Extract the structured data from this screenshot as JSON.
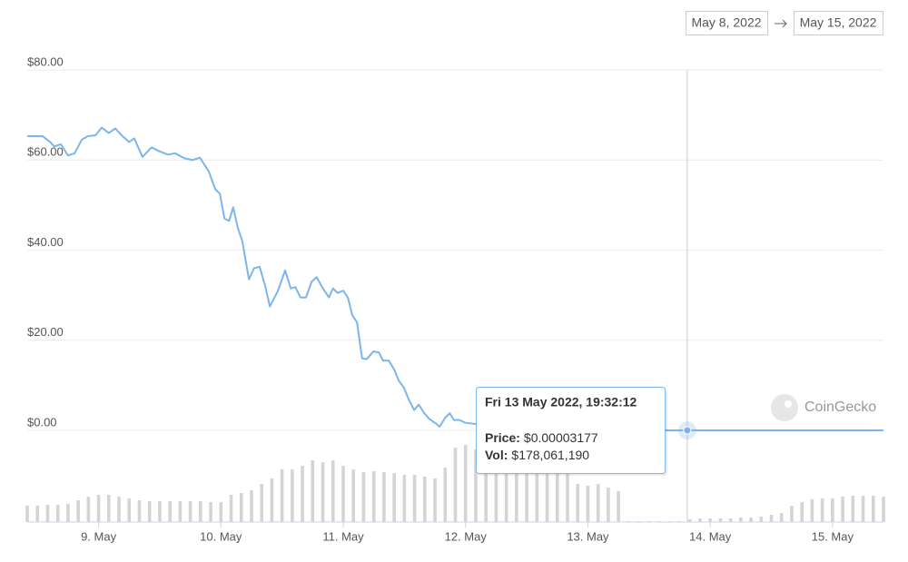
{
  "date_range": {
    "from": "May 8, 2022",
    "to": "May 15, 2022"
  },
  "chart_data": {
    "type": "line",
    "x": [
      10,
      13,
      14.5,
      15.3,
      16.6,
      18,
      19.3,
      20.7,
      21.9,
      23.4,
      24.6,
      26,
      27.3,
      28.5,
      30,
      31,
      32.6,
      34.4,
      35.8,
      37.6,
      39,
      40.8,
      42.4,
      43.9,
      45.6,
      46.9,
      47.8,
      48.7,
      49.6,
      50.4,
      51.3,
      52.2,
      53.5,
      54.5,
      55.6,
      56.7,
      57.6,
      59.2,
      60.6,
      61.7,
      62.6,
      63.6,
      64.7,
      65.8,
      66.8,
      67.9,
      69.2,
      70,
      70.9,
      72,
      72.9,
      73.8,
      74.7,
      75.7,
      76.6,
      77.9,
      79,
      79.8,
      80.9,
      82,
      82.9,
      83.9,
      84.8,
      85.9,
      86.8,
      87.9,
      88.9,
      90.2,
      90.9,
      92,
      92.9,
      93.7,
      94.8,
      95.9,
      97.3,
      99.1,
      100.9,
      106,
      111.6,
      118.7,
      129.4,
      139.5,
      178
    ],
    "series": [
      {
        "color": "#7cb5ec",
        "values": [
          65.3,
          65.3,
          64,
          63,
          63.5,
          61,
          61.5,
          64.5,
          65.3,
          65.5,
          67.2,
          66,
          67,
          65.5,
          64,
          64.8,
          60.7,
          62.8,
          62,
          61.2,
          61.5,
          60.4,
          60,
          60.5,
          57.5,
          53.5,
          52.5,
          47,
          46.5,
          49.5,
          45,
          42,
          33.5,
          36,
          36.3,
          32,
          27.5,
          31,
          35.5,
          31.5,
          31.8,
          29.5,
          29.5,
          33,
          34,
          31.7,
          29.5,
          31.5,
          30.5,
          31,
          29.5,
          25.5,
          24,
          16,
          15.8,
          17.5,
          17.3,
          15.5,
          15.5,
          13.5,
          11,
          9.5,
          7,
          4.5,
          5.7,
          3.8,
          2.5,
          1.5,
          0.8,
          2.8,
          3.8,
          2.3,
          2.3,
          1.7,
          1.5,
          1.2,
          0.8,
          0.5,
          0.4,
          0.1,
          0.01,
          3.177e-05,
          3e-05
        ]
      }
    ],
    "volume": {
      "color": "#d4d4d4",
      "x": [
        10,
        12,
        14,
        16,
        18,
        20,
        22,
        24,
        26,
        28,
        30,
        32,
        34,
        36,
        38,
        40,
        42,
        44,
        46,
        48,
        50,
        52,
        54,
        56,
        58,
        60,
        62,
        64,
        66,
        68,
        70,
        72,
        74,
        76,
        78,
        80,
        82,
        84,
        86,
        88,
        90,
        92,
        94,
        96,
        98,
        100,
        102,
        104,
        106,
        108,
        110,
        112,
        114,
        116,
        118,
        120,
        122,
        124,
        126,
        128,
        130,
        132,
        134,
        136,
        138,
        140,
        142,
        144,
        146,
        148,
        150,
        152,
        154,
        156,
        158,
        160,
        162,
        164,
        166,
        168,
        170,
        172,
        174,
        176,
        178
      ],
      "values": [
        18,
        18,
        19,
        19,
        20,
        24,
        28,
        30,
        30,
        28,
        26,
        24,
        23,
        23,
        23,
        23,
        23,
        23,
        22,
        22,
        30,
        32,
        35,
        42,
        48,
        58,
        58,
        62,
        68,
        66,
        68,
        62,
        58,
        55,
        56,
        55,
        54,
        52,
        52,
        50,
        48,
        60,
        82,
        85,
        80,
        78,
        78,
        75,
        72,
        70,
        68,
        68,
        65,
        60,
        42,
        40,
        42,
        38,
        34,
        1,
        1,
        1,
        1,
        1,
        1,
        3,
        4,
        4,
        4,
        4,
        5,
        5,
        6,
        8,
        10,
        18,
        22,
        25,
        26,
        26,
        28,
        29,
        29,
        29,
        28
      ]
    },
    "xlim": [
      10,
      178
    ],
    "xticks": [
      {
        "value": 24,
        "label": "9. May"
      },
      {
        "value": 48,
        "label": "10. May"
      },
      {
        "value": 72,
        "label": "11. May"
      },
      {
        "value": 96,
        "label": "12. May"
      },
      {
        "value": 120,
        "label": "13. May"
      },
      {
        "value": 144,
        "label": "14. May"
      },
      {
        "value": 168,
        "label": "15. May"
      }
    ],
    "ylim": [
      0,
      80
    ],
    "yticks": [
      {
        "value": 0,
        "label": "$0.00"
      },
      {
        "value": 20,
        "label": "$20.00"
      },
      {
        "value": 40,
        "label": "$40.00"
      },
      {
        "value": 60,
        "label": "$60.00"
      },
      {
        "value": 80,
        "label": "$80.00"
      }
    ],
    "y2lim": [
      0,
      100
    ],
    "grid": true,
    "tooltip": {
      "x": 139.5,
      "title": "Fri 13 May 2022, 19:32:12",
      "price_label": "Price:",
      "price": "$0.00003177",
      "vol_label": "Vol:",
      "vol": "$178,061,190"
    },
    "watermark": "CoinGecko"
  }
}
